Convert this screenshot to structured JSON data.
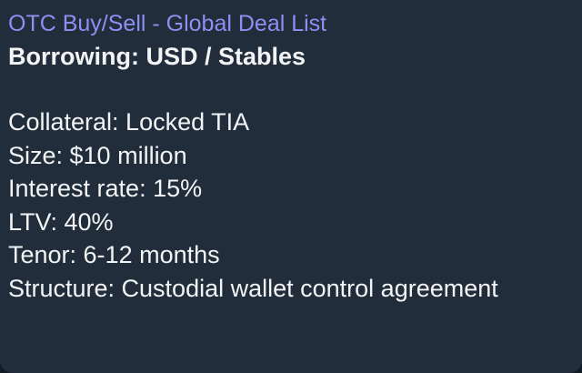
{
  "message": {
    "sender": "OTC Buy/Sell - Global Deal List",
    "heading": "Borrowing: USD / Stables",
    "lines": [
      "Collateral: Locked TIA",
      "Size: $10 million",
      "Interest rate: 15%",
      "LTV: 40%",
      "Tenor: 6-12 months",
      "Structure: Custodial wallet control agreement"
    ]
  },
  "colors": {
    "background": "#212d3b",
    "sender_name": "#8e8ff2",
    "text": "#f2f4f6"
  }
}
